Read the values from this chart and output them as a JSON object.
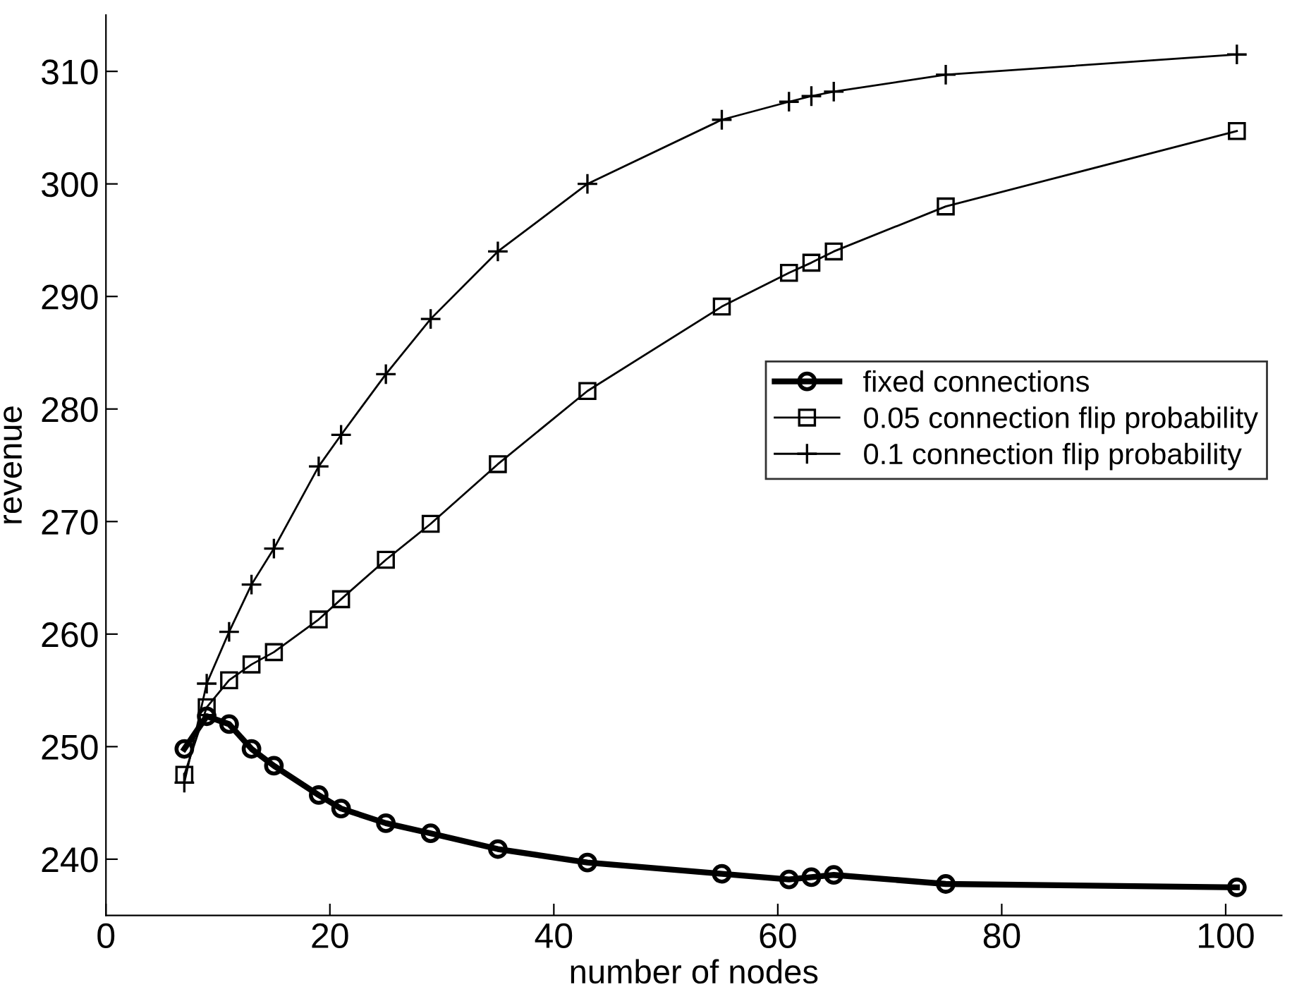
{
  "chart_data": {
    "type": "line",
    "xlabel": "number of nodes",
    "ylabel": "revenue",
    "x": [
      7,
      9,
      11,
      13,
      15,
      19,
      21,
      25,
      29,
      35,
      43,
      55,
      61,
      63,
      65,
      75,
      101
    ],
    "series": [
      {
        "name": "fixed connections",
        "color": "#000000",
        "marker": "circle",
        "values": [
          249.8,
          252.7,
          252.0,
          249.8,
          248.3,
          245.7,
          244.5,
          243.2,
          242.3,
          240.9,
          239.7,
          238.7,
          238.2,
          238.4,
          238.6,
          237.8,
          237.5
        ]
      },
      {
        "name": "0.05 connection flip probability",
        "color": "#000000",
        "marker": "square",
        "values": [
          247.5,
          253.5,
          255.9,
          257.3,
          258.4,
          261.3,
          263.1,
          266.6,
          269.8,
          275.1,
          281.6,
          289.1,
          292.1,
          293.0,
          294.0,
          298.0,
          304.7
        ]
      },
      {
        "name": "0.1 connection flip probability",
        "color": "#000000",
        "marker": "cross",
        "values": [
          246.8,
          255.6,
          260.2,
          264.4,
          267.6,
          274.9,
          277.7,
          283.1,
          288.0,
          294.0,
          300.0,
          305.7,
          307.3,
          307.8,
          308.2,
          309.7,
          311.5
        ]
      }
    ],
    "xlim": [
      0,
      105
    ],
    "xticks": [
      0,
      20,
      40,
      60,
      80,
      100
    ],
    "ylim": [
      235,
      315
    ],
    "yticks": [
      240,
      250,
      260,
      270,
      280,
      290,
      300,
      310
    ],
    "grid": false,
    "legend": "right"
  }
}
